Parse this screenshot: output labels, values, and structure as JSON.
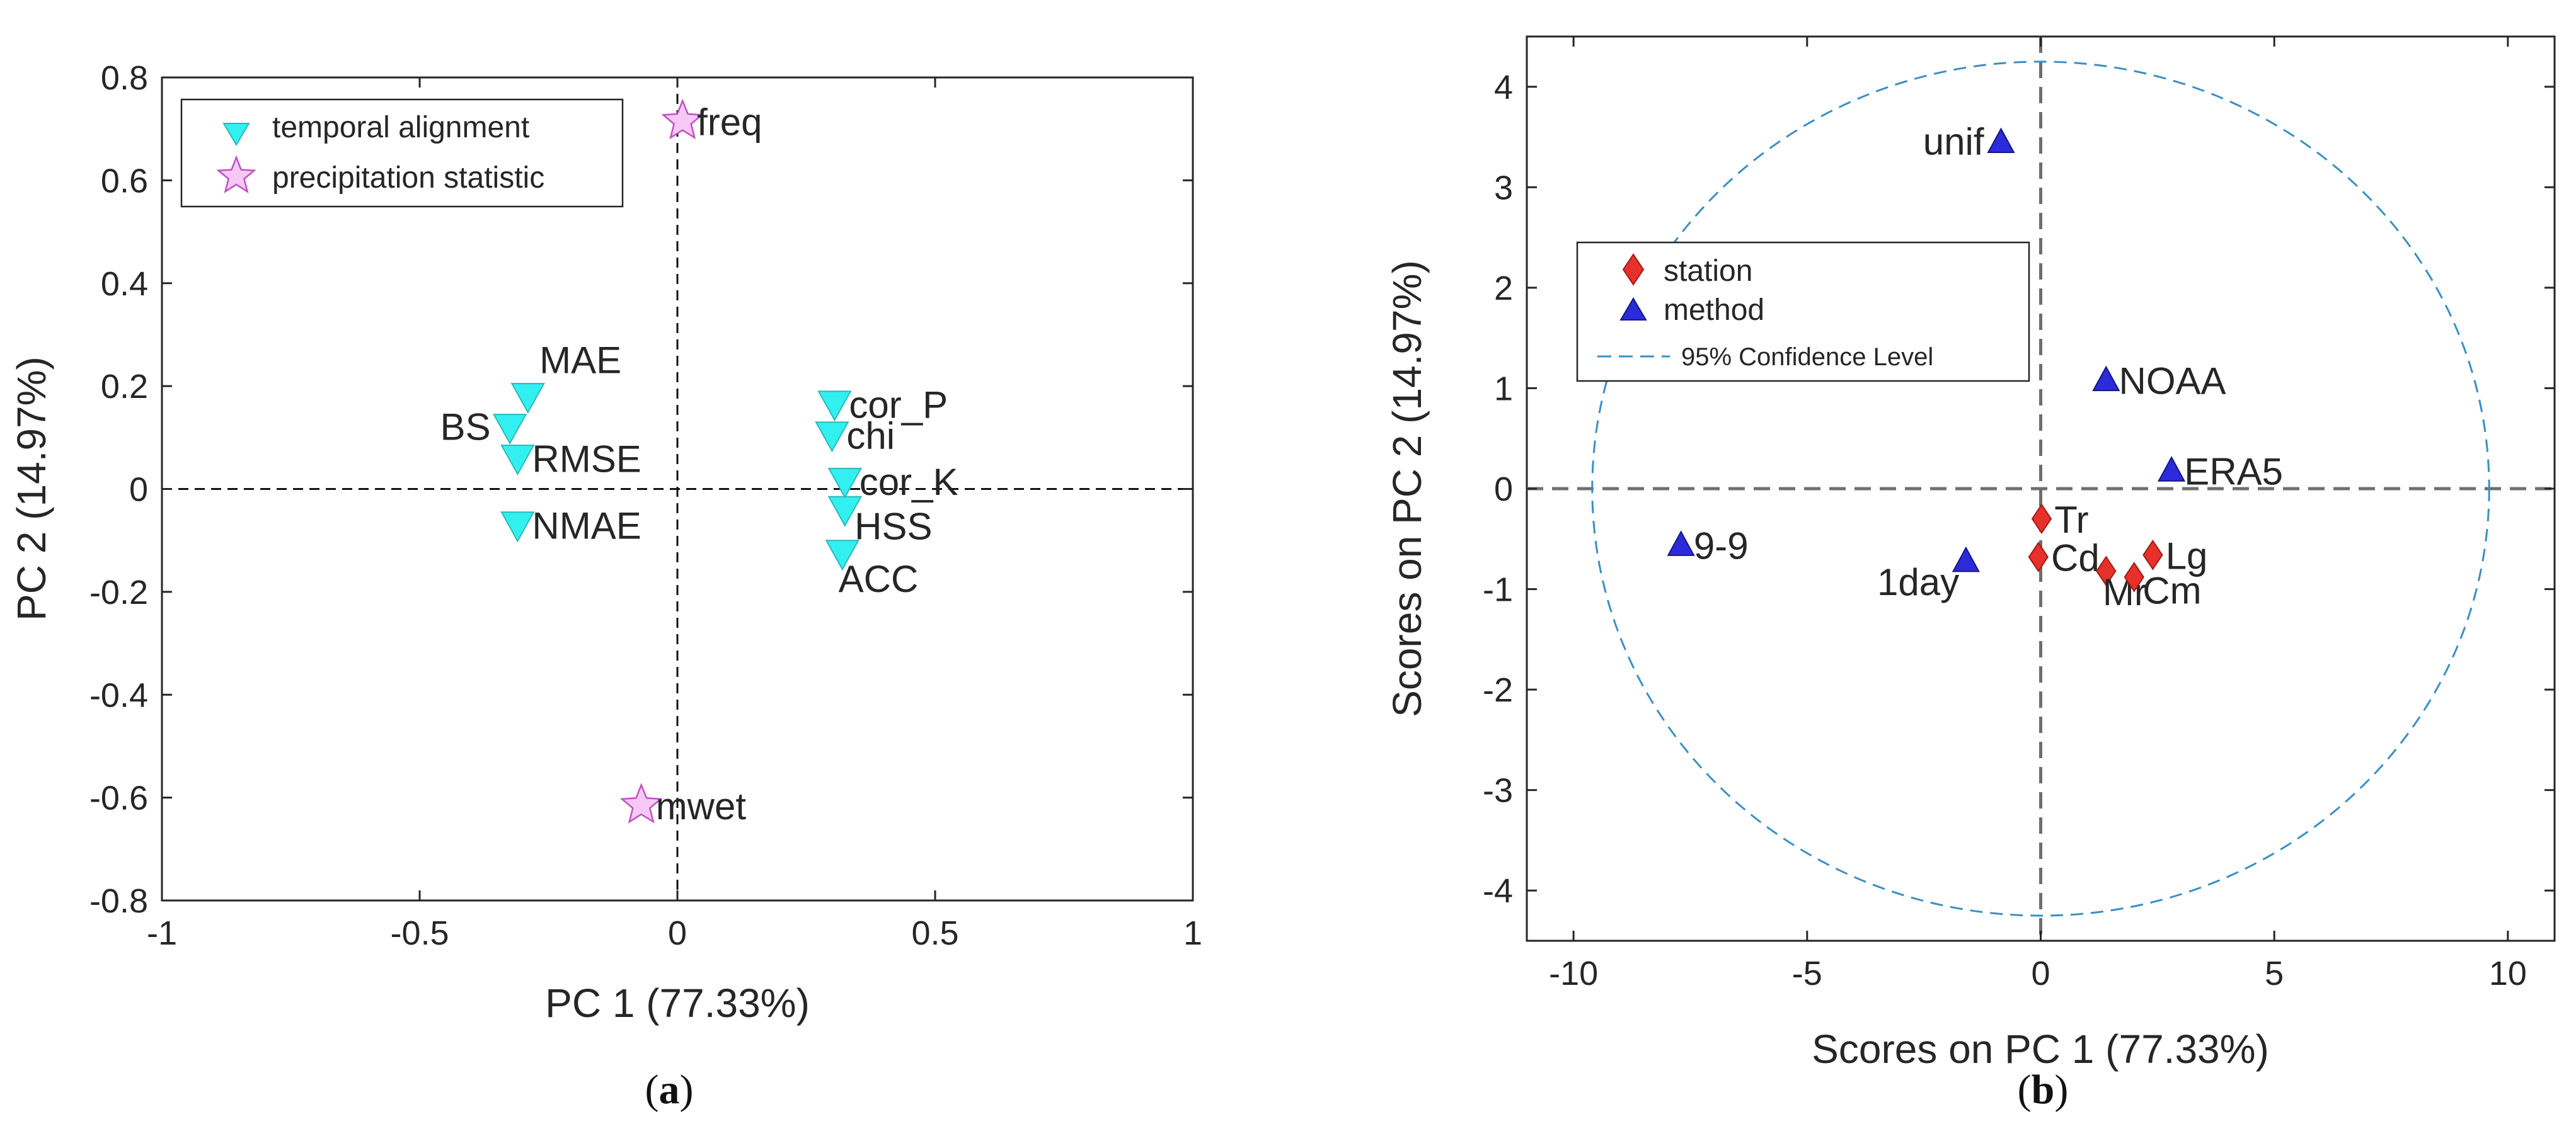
{
  "chart_data": [
    {
      "type": "scatter",
      "caption": {
        "open": "(",
        "letter": "a",
        "close": ")"
      },
      "xlabel": "PC 1 (77.33%)",
      "ylabel": "PC 2 (14.97%)",
      "xlim": [
        -1,
        1
      ],
      "ylim": [
        -0.8,
        0.8
      ],
      "xticks": [
        -1,
        -0.5,
        0,
        0.5,
        1
      ],
      "xtick_labels": [
        "-1",
        "-0.5",
        "0",
        "0.5",
        "1"
      ],
      "yticks": [
        -0.8,
        -0.6,
        -0.4,
        -0.2,
        0,
        0.2,
        0.4,
        0.6,
        0.8
      ],
      "ytick_labels": [
        "-0.8",
        "-0.6",
        "-0.4",
        "-0.2",
        "0",
        "0.2",
        "0.4",
        "0.6",
        "0.8"
      ],
      "legend": {
        "location": "top-left"
      },
      "series": [
        {
          "name": "temporal alignment",
          "marker": "triangle-down",
          "color": "#33f0f0",
          "points": [
            {
              "label": "MAE",
              "x": -0.29,
              "y": 0.18,
              "label_pos": "above-right"
            },
            {
              "label": "BS",
              "x": -0.325,
              "y": 0.12,
              "label_pos": "left"
            },
            {
              "label": "RMSE",
              "x": -0.31,
              "y": 0.06,
              "label_pos": "right"
            },
            {
              "label": "NMAE",
              "x": -0.31,
              "y": -0.07,
              "label_pos": "right"
            },
            {
              "label": "cor_P",
              "x": 0.305,
              "y": 0.165,
              "label_pos": "right"
            },
            {
              "label": "chi",
              "x": 0.3,
              "y": 0.105,
              "label_pos": "right"
            },
            {
              "label": "cor_K",
              "x": 0.325,
              "y": 0.015,
              "label_pos": "right"
            },
            {
              "label": "HSS",
              "x": 0.325,
              "y": -0.04,
              "label_pos": "right-below"
            },
            {
              "label": "ACC",
              "x": 0.32,
              "y": -0.125,
              "label_pos": "below"
            }
          ]
        },
        {
          "name": "precipitation statistic",
          "marker": "star",
          "color": "#f6c8f6",
          "points": [
            {
              "label": "freq",
              "x": 0.01,
              "y": 0.715,
              "label_pos": "right"
            },
            {
              "label": "mwet",
              "x": -0.07,
              "y": -0.615,
              "label_pos": "right"
            }
          ]
        }
      ]
    },
    {
      "type": "scatter",
      "caption": {
        "open": "(",
        "letter": "b",
        "close": ")"
      },
      "xlabel": "Scores on PC 1 (77.33%)",
      "ylabel": "Scores on PC 2 (14.97%)",
      "xlim": [
        -11,
        11
      ],
      "ylim": [
        -4.5,
        4.5
      ],
      "xticks": [
        -10,
        -5,
        0,
        5,
        10
      ],
      "xtick_labels": [
        "-10",
        "-5",
        "0",
        "5",
        "10"
      ],
      "yticks": [
        -4,
        -3,
        -2,
        -1,
        0,
        1,
        2,
        3,
        4
      ],
      "ytick_labels": [
        "-4",
        "-3",
        "-2",
        "-1",
        "0",
        "1",
        "2",
        "3",
        "4"
      ],
      "legend": {
        "location": "upper-left"
      },
      "confidence_ellipse": {
        "name": "95% Confidence Level",
        "rx": 9.6,
        "ry": 4.25,
        "color": "#3a8fc4"
      },
      "series": [
        {
          "name": "station",
          "marker": "diamond",
          "color": "#e8302a",
          "points": [
            {
              "label": "Tr",
              "x": 0.02,
              "y": -0.3,
              "label_pos": "right"
            },
            {
              "label": "Cd",
              "x": -0.05,
              "y": -0.68,
              "label_pos": "right"
            },
            {
              "label": "Mr",
              "x": 1.4,
              "y": -0.82,
              "label_pos": "below"
            },
            {
              "label": "Cm",
              "x": 2.0,
              "y": -0.88,
              "label_pos": "right-below"
            },
            {
              "label": "Lg",
              "x": 2.4,
              "y": -0.66,
              "label_pos": "right"
            }
          ]
        },
        {
          "name": "method",
          "marker": "triangle-up",
          "color": "#2b2bdc",
          "points": [
            {
              "label": "unif",
              "x": -0.85,
              "y": 3.45,
              "label_pos": "left"
            },
            {
              "label": "NOAA",
              "x": 1.4,
              "y": 1.08,
              "label_pos": "right"
            },
            {
              "label": "ERA5",
              "x": 2.8,
              "y": 0.18,
              "label_pos": "right"
            },
            {
              "label": "9-9",
              "x": -7.7,
              "y": -0.56,
              "label_pos": "right"
            },
            {
              "label": "1day",
              "x": -1.6,
              "y": -0.72,
              "label_pos": "below-left"
            }
          ]
        }
      ]
    }
  ]
}
